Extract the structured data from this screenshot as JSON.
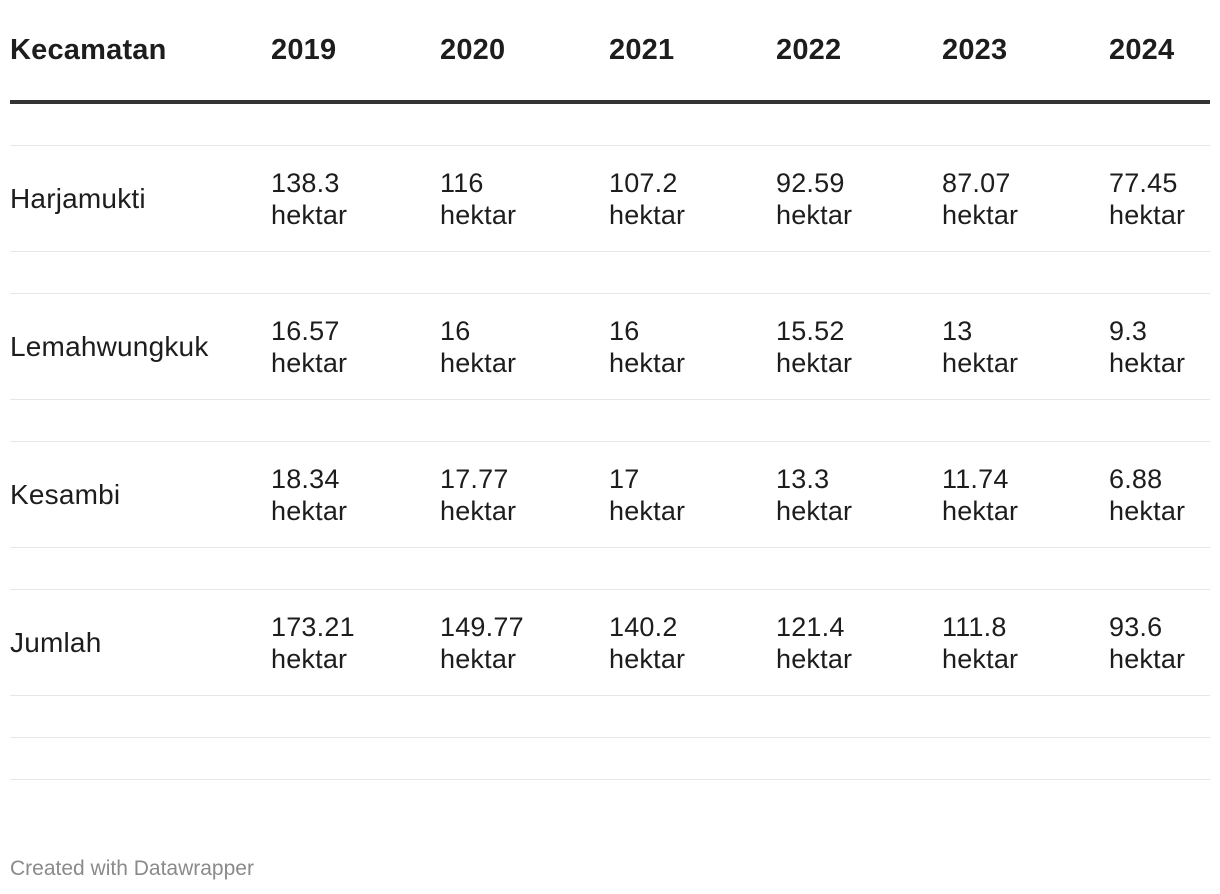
{
  "chart_data": {
    "type": "table",
    "columns": [
      "Kecamatan",
      "2019",
      "2020",
      "2021",
      "2022",
      "2023",
      "2024"
    ],
    "unit": "hektar",
    "rows": [
      {
        "name": "Harjamukti",
        "values": [
          "138.3",
          "116",
          "107.2",
          "92.59",
          "87.07",
          "77.45"
        ]
      },
      {
        "name": "Lemahwungkuk",
        "values": [
          "16.57",
          "16",
          "16",
          "15.52",
          "13",
          "9.3"
        ]
      },
      {
        "name": "Kesambi",
        "values": [
          "18.34",
          "17.77",
          "17",
          "13.3",
          "11.74",
          "6.88"
        ]
      },
      {
        "name": "Jumlah",
        "values": [
          "173.21",
          "149.77",
          "140.2",
          "121.4",
          "111.8",
          "93.6"
        ]
      }
    ]
  },
  "footer": {
    "credit": "Created with Datawrapper"
  }
}
